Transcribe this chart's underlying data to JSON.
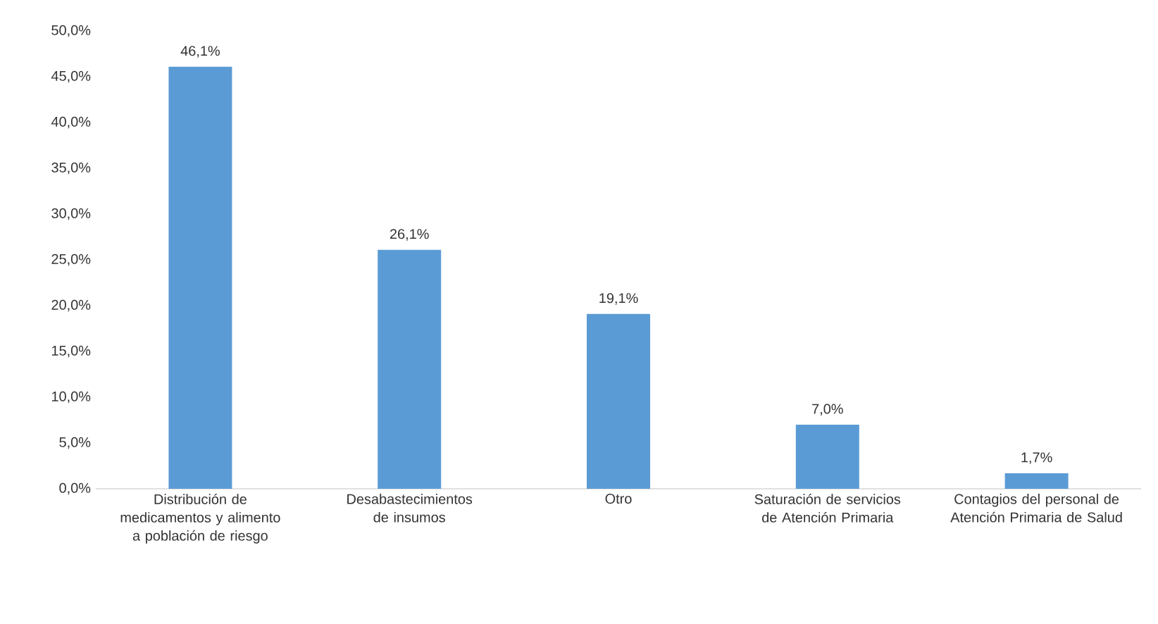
{
  "chart_data": {
    "type": "bar",
    "categories": [
      "Distribución de medicamentos y alimento a población de riesgo",
      "Desabastecimientos de insumos",
      "Otro",
      "Saturación de servicios de Atención Primaria",
      "Contagios del personal de Atención Primaria de Salud"
    ],
    "values": [
      46.1,
      26.1,
      19.1,
      7.0,
      1.7
    ],
    "value_labels": [
      "46,1%",
      "26,1%",
      "19,1%",
      "7,0%",
      "1,7%"
    ],
    "color": "#5b9bd5",
    "ylim": [
      0,
      50
    ],
    "yticks": [
      {
        "value": 0,
        "label": "0,0%"
      },
      {
        "value": 5,
        "label": "5,0%"
      },
      {
        "value": 10,
        "label": "10,0%"
      },
      {
        "value": 15,
        "label": "15,0%"
      },
      {
        "value": 20,
        "label": "20,0%"
      },
      {
        "value": 25,
        "label": "25,0%"
      },
      {
        "value": 30,
        "label": "30,0%"
      },
      {
        "value": 35,
        "label": "35,0%"
      },
      {
        "value": 40,
        "label": "40,0%"
      },
      {
        "value": 45,
        "label": "45,0%"
      },
      {
        "value": 50,
        "label": "50,0%"
      }
    ]
  }
}
